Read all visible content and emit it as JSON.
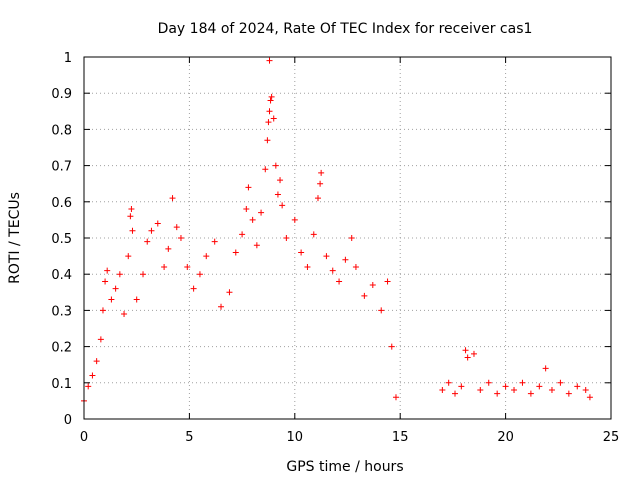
{
  "chart_data": {
    "type": "scatter",
    "title": "Day 184 of 2024, Rate Of TEC Index for receiver cas1",
    "xlabel": "GPS time / hours",
    "ylabel": "ROTI / TECUs",
    "xlim": [
      0,
      25
    ],
    "ylim": [
      0,
      1
    ],
    "x_ticks": [
      "0",
      "5",
      "10",
      "15",
      "20",
      "25"
    ],
    "y_ticks": [
      "0",
      "0.1",
      "0.2",
      "0.3",
      "0.4",
      "0.5",
      "0.6",
      "0.7",
      "0.8",
      "0.9",
      "1"
    ],
    "grid": true,
    "marker": "plus",
    "marker_color": "#ff0000",
    "series": [
      {
        "points": [
          [
            0.0,
            0.05
          ],
          [
            0.2,
            0.09
          ],
          [
            0.4,
            0.12
          ],
          [
            0.6,
            0.16
          ],
          [
            0.8,
            0.22
          ],
          [
            0.9,
            0.3
          ],
          [
            1.0,
            0.38
          ],
          [
            1.1,
            0.41
          ],
          [
            1.3,
            0.33
          ],
          [
            1.5,
            0.36
          ],
          [
            1.7,
            0.4
          ],
          [
            1.9,
            0.29
          ],
          [
            2.1,
            0.45
          ],
          [
            2.2,
            0.56
          ],
          [
            2.25,
            0.58
          ],
          [
            2.3,
            0.52
          ],
          [
            2.5,
            0.33
          ],
          [
            2.8,
            0.4
          ],
          [
            3.0,
            0.49
          ],
          [
            3.2,
            0.52
          ],
          [
            3.5,
            0.54
          ],
          [
            3.8,
            0.42
          ],
          [
            4.0,
            0.47
          ],
          [
            4.2,
            0.61
          ],
          [
            4.4,
            0.53
          ],
          [
            4.6,
            0.5
          ],
          [
            4.9,
            0.42
          ],
          [
            5.2,
            0.36
          ],
          [
            5.5,
            0.4
          ],
          [
            5.8,
            0.45
          ],
          [
            6.2,
            0.49
          ],
          [
            6.5,
            0.31
          ],
          [
            6.9,
            0.35
          ],
          [
            7.2,
            0.46
          ],
          [
            7.5,
            0.51
          ],
          [
            7.7,
            0.58
          ],
          [
            7.8,
            0.64
          ],
          [
            8.0,
            0.55
          ],
          [
            8.2,
            0.48
          ],
          [
            8.4,
            0.57
          ],
          [
            8.6,
            0.69
          ],
          [
            8.7,
            0.77
          ],
          [
            8.75,
            0.82
          ],
          [
            8.8,
            0.85
          ],
          [
            8.85,
            0.88
          ],
          [
            8.9,
            0.89
          ],
          [
            8.8,
            0.99
          ],
          [
            9.0,
            0.83
          ],
          [
            9.1,
            0.7
          ],
          [
            9.2,
            0.62
          ],
          [
            9.3,
            0.66
          ],
          [
            9.4,
            0.59
          ],
          [
            9.6,
            0.5
          ],
          [
            10.0,
            0.55
          ],
          [
            10.3,
            0.46
          ],
          [
            10.6,
            0.42
          ],
          [
            10.9,
            0.51
          ],
          [
            11.1,
            0.61
          ],
          [
            11.2,
            0.65
          ],
          [
            11.25,
            0.68
          ],
          [
            11.5,
            0.45
          ],
          [
            11.8,
            0.41
          ],
          [
            12.1,
            0.38
          ],
          [
            12.4,
            0.44
          ],
          [
            12.7,
            0.5
          ],
          [
            12.9,
            0.42
          ],
          [
            13.3,
            0.34
          ],
          [
            13.7,
            0.37
          ],
          [
            14.1,
            0.3
          ],
          [
            14.4,
            0.38
          ],
          [
            14.6,
            0.2
          ],
          [
            14.8,
            0.06
          ],
          [
            17.0,
            0.08
          ],
          [
            17.3,
            0.1
          ],
          [
            17.6,
            0.07
          ],
          [
            17.9,
            0.09
          ],
          [
            18.1,
            0.19
          ],
          [
            18.2,
            0.17
          ],
          [
            18.5,
            0.18
          ],
          [
            18.8,
            0.08
          ],
          [
            19.2,
            0.1
          ],
          [
            19.6,
            0.07
          ],
          [
            20.0,
            0.09
          ],
          [
            20.4,
            0.08
          ],
          [
            20.8,
            0.1
          ],
          [
            21.2,
            0.07
          ],
          [
            21.6,
            0.09
          ],
          [
            21.9,
            0.14
          ],
          [
            22.2,
            0.08
          ],
          [
            22.6,
            0.1
          ],
          [
            23.0,
            0.07
          ],
          [
            23.4,
            0.09
          ],
          [
            23.8,
            0.08
          ],
          [
            24.0,
            0.06
          ]
        ]
      }
    ]
  }
}
